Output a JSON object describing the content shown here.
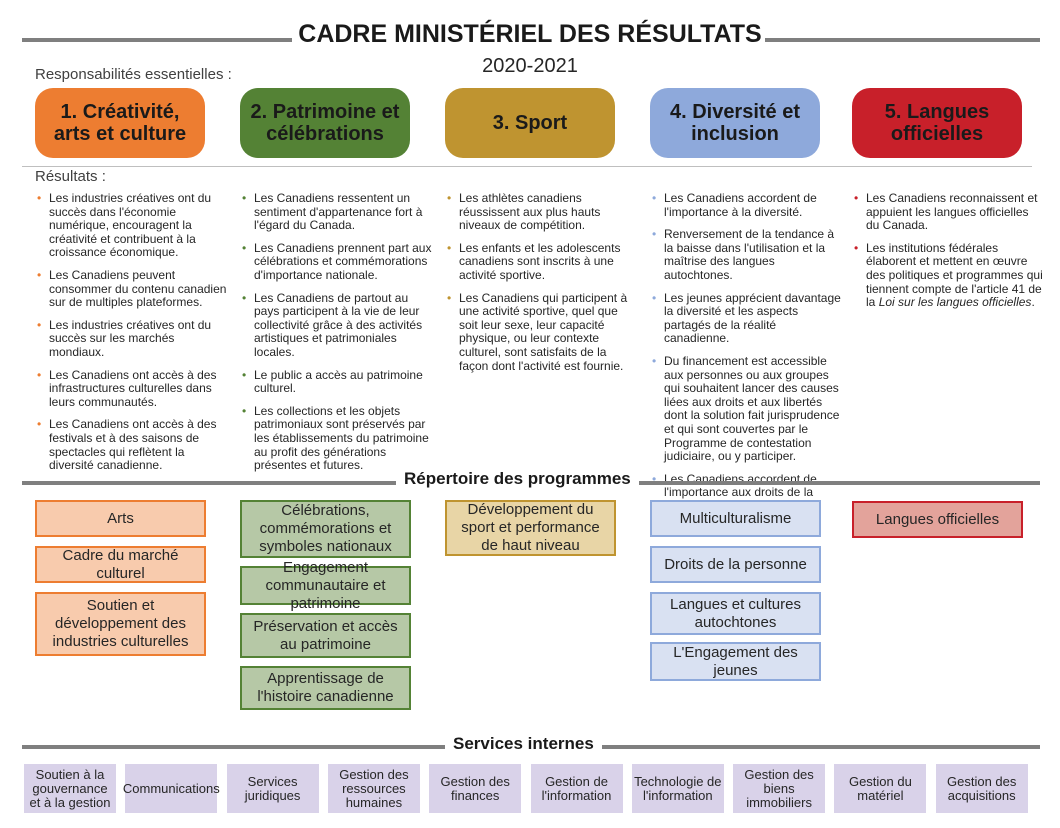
{
  "header": {
    "title": "CADRE MINISTÉRIEL  DES RÉSULTATS",
    "year": "2020-2021",
    "responsibilities_label": "Responsabilités essentielles :",
    "results_label": "Résultats :"
  },
  "colors": {
    "orange": "#ED7D31",
    "green": "#548235",
    "gold": "#BF9430",
    "blue": "#8EA9DB",
    "red": "#C8202A",
    "services": "#D9D2E9"
  },
  "responsibilities": [
    {
      "label": "1. Créativité, arts et culture",
      "results": [
        "Les industries créatives ont du succès dans l'économie numérique, encouragent la créativité et contribuent à la croissance économique.",
        "Les Canadiens peuvent consommer du contenu canadien sur de multiples plateformes.",
        "Les industries créatives ont du succès sur les marchés mondiaux.",
        "Les Canadiens ont accès à des infrastructures culturelles dans leurs communautés.",
        "Les Canadiens ont accès à des festivals et à des saisons de spectacles qui reflètent la diversité canadienne."
      ],
      "programs": [
        "Arts",
        "Cadre du marché culturel",
        "Soutien et développement des industries culturelles"
      ]
    },
    {
      "label": "2. Patrimoine et célébrations",
      "results": [
        "Les Canadiens ressentent un sentiment d'appartenance fort à l'égard du Canada.",
        "Les Canadiens prennent part aux célébrations et commémorations d'importance nationale.",
        "Les Canadiens de partout au pays participent à la vie de leur collectivité grâce à des activités artistiques et patrimoniales locales.",
        "Le public a accès au patrimoine culturel.",
        "Les collections et les objets patrimoniaux sont préservés par les établissements du patrimoine au profit des générations présentes et futures."
      ],
      "programs": [
        "Célébrations, commémorations et symboles nationaux",
        "Engagement communautaire et patrimoine",
        "Préservation et accès au patrimoine",
        "Apprentissage de l'histoire canadienne"
      ]
    },
    {
      "label": "3. Sport",
      "results": [
        "Les athlètes canadiens réussissent aux plus hauts niveaux de compétition.",
        "Les enfants et les adolescents canadiens sont inscrits à une activité sportive.",
        "Les Canadiens qui participent à une activité sportive, quel que soit leur sexe, leur capacité physique, ou leur contexte culturel, sont satisfaits de la façon dont l'activité est fournie."
      ],
      "programs": [
        "Développement du sport et performance de haut niveau"
      ]
    },
    {
      "label": "4. Diversité et inclusion",
      "results": [
        "Les Canadiens accordent de l'importance à la diversité.",
        "Renversement de la tendance à la baisse dans l'utilisation et la maîtrise des langues autochtones.",
        "Les jeunes apprécient davantage la diversité et les aspects partagés de la réalité canadienne.",
        "Du financement est accessible aux personnes ou aux groupes qui souhaitent lancer des causes liées aux droits et aux libertés dont la solution fait jurisprudence et qui sont couvertes par le Programme de contestation judiciaire, ou y participer.",
        "Les Canadiens accordent de l'importance aux droits de la personne."
      ],
      "programs": [
        "Multiculturalisme",
        "Droits de la personne",
        "Langues et cultures autochtones",
        "L'Engagement des jeunes"
      ]
    },
    {
      "label": "5. Langues officielles",
      "results": [
        "Les Canadiens reconnaissent et appuient les langues officielles du Canada.",
        "Les institutions fédérales élaborent et mettent en œuvre des politiques et programmes qui tiennent compte de l'article 41 de la Loi sur les langues officielles."
      ],
      "programs": [
        "Langues officielles"
      ]
    }
  ],
  "programs_heading": "Répertoire des programmes",
  "services_heading": "Services internes",
  "services": [
    "Soutien à la gouvernance et à la gestion",
    "Communications",
    "Services juridiques",
    "Gestion des ressources humaines",
    "Gestion des finances",
    "Gestion de l'information",
    "Technologie de l'information",
    "Gestion des biens immobiliers",
    "Gestion du matériel",
    "Gestion des acquisitions"
  ]
}
